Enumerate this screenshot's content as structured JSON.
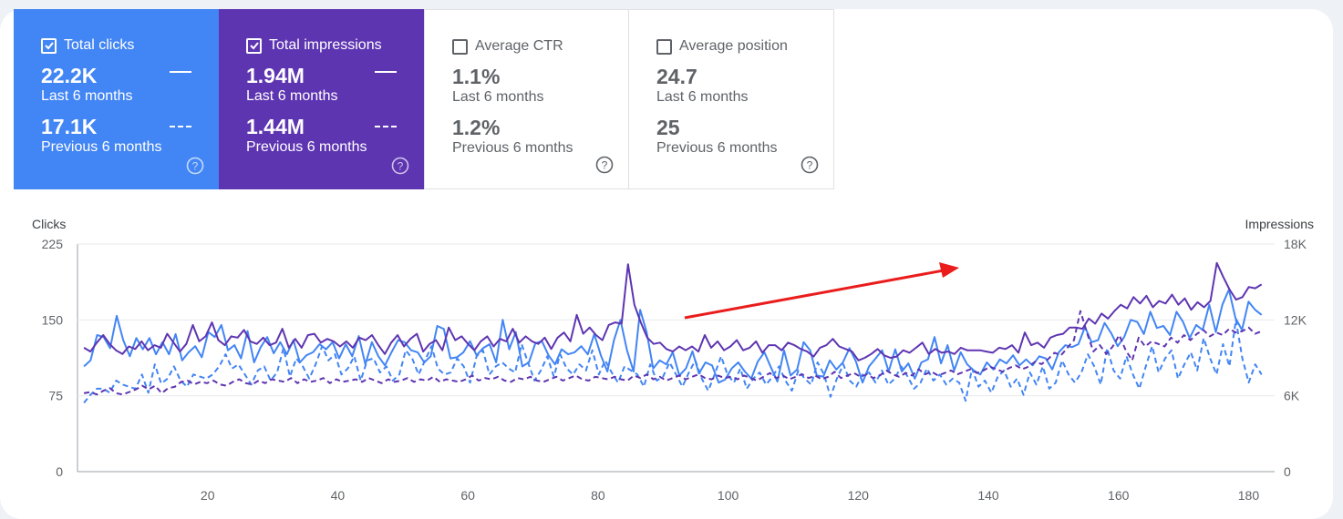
{
  "cards": [
    {
      "id": "clicks",
      "label": "Total clicks",
      "checked": true,
      "current": "22.2K",
      "current_label": "Last 6 months",
      "previous": "17.1K",
      "previous_label": "Previous 6 months",
      "color": "#4285f4"
    },
    {
      "id": "impressions",
      "label": "Total impressions",
      "checked": true,
      "current": "1.94M",
      "current_label": "Last 6 months",
      "previous": "1.44M",
      "previous_label": "Previous 6 months",
      "color": "#5e35b1"
    },
    {
      "id": "ctr",
      "label": "Average CTR",
      "checked": false,
      "current": "1.1%",
      "current_label": "Last 6 months",
      "previous": "1.2%",
      "previous_label": "Previous 6 months"
    },
    {
      "id": "position",
      "label": "Average position",
      "checked": false,
      "current": "24.7",
      "current_label": "Last 6 months",
      "previous": "25",
      "previous_label": "Previous 6 months"
    }
  ],
  "chart_data": {
    "type": "line",
    "left_axis": {
      "label": "Clicks",
      "ticks": [
        "0",
        "75",
        "150",
        "225"
      ],
      "range": [
        0,
        225
      ]
    },
    "right_axis": {
      "label": "Impressions",
      "ticks": [
        "0",
        "6K",
        "12K",
        "18K"
      ],
      "range": [
        0,
        18000
      ]
    },
    "x_ticks": [
      "20",
      "40",
      "60",
      "80",
      "100",
      "120",
      "140",
      "160",
      "180"
    ],
    "x_range": [
      0,
      184
    ],
    "grid": true,
    "series": [
      {
        "axis": "left",
        "style": "solid",
        "color": "#4285f4",
        "values": [
          104,
          110,
          135,
          133,
          122,
          154,
          130,
          114,
          132,
          121,
          132,
          116,
          128,
          116,
          136,
          110,
          118,
          124,
          113,
          138,
          133,
          145,
          120,
          125,
          112,
          139,
          108,
          123,
          133,
          117,
          128,
          116,
          130,
          108,
          115,
          118,
          126,
          121,
          128,
          112,
          126,
          114,
          134,
          106,
          128,
          114,
          105,
          118,
          130,
          128,
          120,
          118,
          108,
          114,
          144,
          141,
          112,
          113,
          118,
          129,
          115,
          122,
          126,
          108,
          150,
          121,
          138,
          104,
          108,
          127,
          129,
          115,
          106,
          121,
          116,
          118,
          124,
          116,
          136,
          115,
          99,
          130,
          150,
          120,
          99,
          160,
          138,
          102,
          110,
          106,
          118,
          95,
          102,
          119,
          97,
          108,
          105,
          88,
          91,
          102,
          108,
          99,
          92,
          109,
          118,
          103,
          89,
          120,
          95,
          101,
          128,
          120,
          95,
          94,
          110,
          101,
          108,
          122,
          109,
          88,
          104,
          112,
          120,
          99,
          121,
          99,
          107,
          92,
          108,
          111,
          133,
          107,
          125,
          100,
          118,
          106,
          100,
          96,
          108,
          101,
          111,
          107,
          115,
          105,
          111,
          105,
          114,
          112,
          101,
          118,
          125,
          123,
          126,
          143,
          128,
          130,
          147,
          137,
          124,
          133,
          150,
          148,
          136,
          158,
          142,
          144,
          135,
          158,
          148,
          132,
          145,
          140,
          165,
          138,
          165,
          180,
          152,
          140,
          168,
          160,
          155
        ]
      },
      {
        "axis": "right",
        "style": "solid",
        "color": "#5e35b1",
        "values": [
          9800,
          9500,
          10200,
          10800,
          10100,
          9600,
          9300,
          9900,
          9700,
          10300,
          9600,
          10000,
          9800,
          10900,
          10200,
          9500,
          10100,
          11600,
          10300,
          10700,
          11800,
          10400,
          10000,
          10700,
          10600,
          11200,
          10300,
          10100,
          10600,
          10000,
          10200,
          11300,
          9800,
          10500,
          9800,
          10800,
          10900,
          10200,
          10500,
          10300,
          9900,
          10300,
          9800,
          10600,
          10400,
          10800,
          10000,
          9300,
          10200,
          10800,
          9900,
          10500,
          10900,
          9500,
          10100,
          10400,
          9600,
          11400,
          10400,
          10700,
          10100,
          9600,
          10300,
          10700,
          9900,
          10500,
          10300,
          11300,
          10200,
          10700,
          10300,
          10100,
          10600,
          9700,
          10600,
          11000,
          10300,
          12400,
          10900,
          11400,
          10800,
          10400,
          11600,
          11800,
          11700,
          16400,
          13200,
          11800,
          10600,
          10100,
          10200,
          9700,
          9500,
          9900,
          9600,
          9900,
          9500,
          10800,
          9800,
          10300,
          9600,
          9900,
          10400,
          9600,
          9800,
          10300,
          9400,
          10000,
          10000,
          9600,
          10200,
          10000,
          9700,
          9500,
          9100,
          9800,
          10000,
          10500,
          9900,
          9700,
          9500,
          8800,
          9000,
          9300,
          9700,
          9200,
          9000,
          9100,
          9600,
          9400,
          9800,
          10200,
          9300,
          9700,
          9400,
          9500,
          9300,
          9800,
          9600,
          9600,
          9600,
          9500,
          9400,
          9800,
          9700,
          10000,
          9400,
          11000,
          10000,
          10200,
          9800,
          10600,
          10800,
          10900,
          11400,
          11400,
          11300,
          12100,
          11700,
          12500,
          12100,
          12700,
          13200,
          12900,
          13800,
          13300,
          13900,
          13000,
          13500,
          13300,
          14000,
          13200,
          13700,
          12800,
          13400,
          13000,
          13500,
          16500,
          15400,
          14400,
          13600,
          13800,
          14600,
          14500,
          14800
        ]
      },
      {
        "axis": "left",
        "style": "dashed",
        "color": "#4285f4",
        "values": [
          68,
          76,
          82,
          82,
          78,
          90,
          86,
          84,
          82,
          96,
          78,
          106,
          87,
          92,
          104,
          90,
          84,
          96,
          94,
          92,
          96,
          104,
          116,
          102,
          106,
          96,
          86,
          100,
          104,
          90,
          98,
          122,
          94,
          112,
          104,
          92,
          106,
          124,
          110,
          116,
          96,
          102,
          114,
          90,
          110,
          112,
          98,
          104,
          90,
          96,
          120,
          112,
          96,
          110,
          124,
          102,
          96,
          98,
          112,
          104,
          88,
          114,
          120,
          96,
          104,
          108,
          102,
          98,
          126,
          108,
          90,
          100,
          114,
          94,
          116,
          102,
          96,
          106,
          100,
          120,
          96,
          110,
          98,
          88,
          104,
          100,
          96,
          84,
          106,
          90,
          94,
          108,
          96,
          84,
          98,
          110,
          92,
          80,
          96,
          114,
          96,
          88,
          102,
          82,
          92,
          98,
          86,
          94,
          104,
          90,
          80,
          100,
          92,
          86,
          108,
          96,
          74,
          92,
          106,
          90,
          84,
          96,
          98,
          88,
          100,
          86,
          92,
          104,
          94,
          82,
          88,
          102,
          90,
          96,
          86,
          92,
          88,
          70,
          102,
          84,
          90,
          78,
          94,
          100,
          84,
          92,
          76,
          98,
          86,
          104,
          82,
          88,
          110,
          96,
          88,
          98,
          116,
          104,
          86,
          122,
          100,
          92,
          114,
          96,
          82,
          104,
          124,
          98,
          112,
          120,
          92,
          106,
          118,
          100,
          132,
          112,
          96,
          126,
          104,
          150,
          112,
          88,
          106,
          96
        ]
      },
      {
        "axis": "right",
        "style": "dashed",
        "color": "#5e35b1",
        "values": [
          6200,
          6300,
          6100,
          6400,
          6600,
          6200,
          6100,
          6300,
          6500,
          6800,
          6500,
          6800,
          6200,
          6600,
          6700,
          7100,
          7200,
          6900,
          7100,
          7000,
          7200,
          6900,
          6800,
          7100,
          7300,
          7000,
          6900,
          7200,
          7000,
          7300,
          7200,
          7100,
          7400,
          7000,
          7300,
          7100,
          7200,
          7400,
          7000,
          7300,
          7100,
          7200,
          7300,
          7100,
          7400,
          7200,
          7000,
          7300,
          7100,
          7200,
          7400,
          7100,
          7300,
          7200,
          7500,
          7100,
          7300,
          7200,
          7100,
          7300,
          7600,
          7200,
          7400,
          7300,
          7500,
          7200,
          7100,
          7400,
          7300,
          7500,
          7200,
          7100,
          7300,
          7500,
          7200,
          7400,
          7600,
          7300,
          7200,
          7500,
          7400,
          7300,
          7500,
          7300,
          7200,
          7600,
          7400,
          7700,
          7300,
          7500,
          7200,
          7400,
          7600,
          7300,
          7500,
          7700,
          7400,
          7300,
          7600,
          7400,
          7500,
          7300,
          7600,
          7400,
          7200,
          7500,
          7800,
          7400,
          7600,
          7300,
          7500,
          7700,
          7400,
          7600,
          7300,
          7500,
          7900,
          7400,
          7600,
          7800,
          7500,
          7700,
          7400,
          7600,
          8000,
          7700,
          7500,
          7800,
          7600,
          8100,
          7700,
          7900,
          7600,
          7800,
          8000,
          7700,
          7900,
          8100,
          7800,
          8000,
          8300,
          8100,
          7900,
          8200,
          8400,
          8100,
          8300,
          8700,
          8500,
          8900,
          9400,
          9200,
          9800,
          10400,
          12700,
          11000,
          9500,
          10000,
          9300,
          9900,
          10800,
          9600,
          8800,
          10600,
          9900,
          10300,
          10100,
          9900,
          10600,
          10200,
          10800,
          10400,
          10900,
          11200,
          10700,
          11000,
          10800,
          11300,
          11000,
          11100,
          11400,
          10900,
          11100
        ]
      }
    ],
    "annotation": {
      "type": "arrow",
      "color": "#ea1c1c"
    }
  }
}
